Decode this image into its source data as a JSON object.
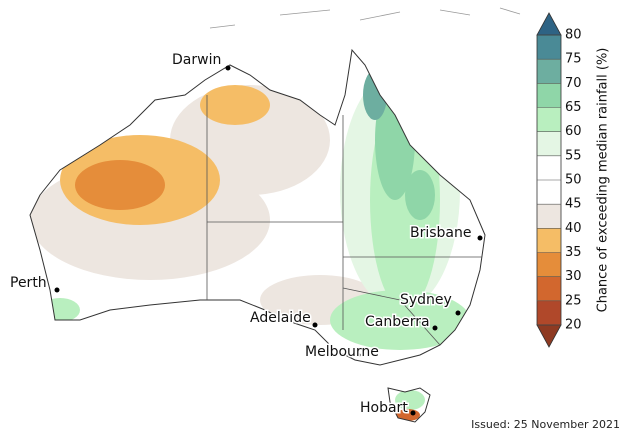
{
  "cities": [
    "Darwin",
    "Perth",
    "Adelaide",
    "Melbourne",
    "Canberra",
    "Sydney",
    "Brisbane",
    "Hobart"
  ],
  "colorbar": {
    "label": "Chance of exceeding median rainfall (%)",
    "ticks": [
      20,
      25,
      30,
      35,
      40,
      45,
      50,
      55,
      60,
      65,
      70,
      75,
      80
    ],
    "colors": [
      "#b0482a",
      "#d2672e",
      "#e58d3a",
      "#f5bd66",
      "#ede6e0",
      "#ffffff",
      "#ffffff",
      "#e4f6e4",
      "#b9efbf",
      "#8fd6a8",
      "#6daea0",
      "#4a8a96"
    ],
    "under_color": "#8e3a22",
    "over_color": "#2e6384"
  },
  "issued": "Issued: 25 November 2021"
}
